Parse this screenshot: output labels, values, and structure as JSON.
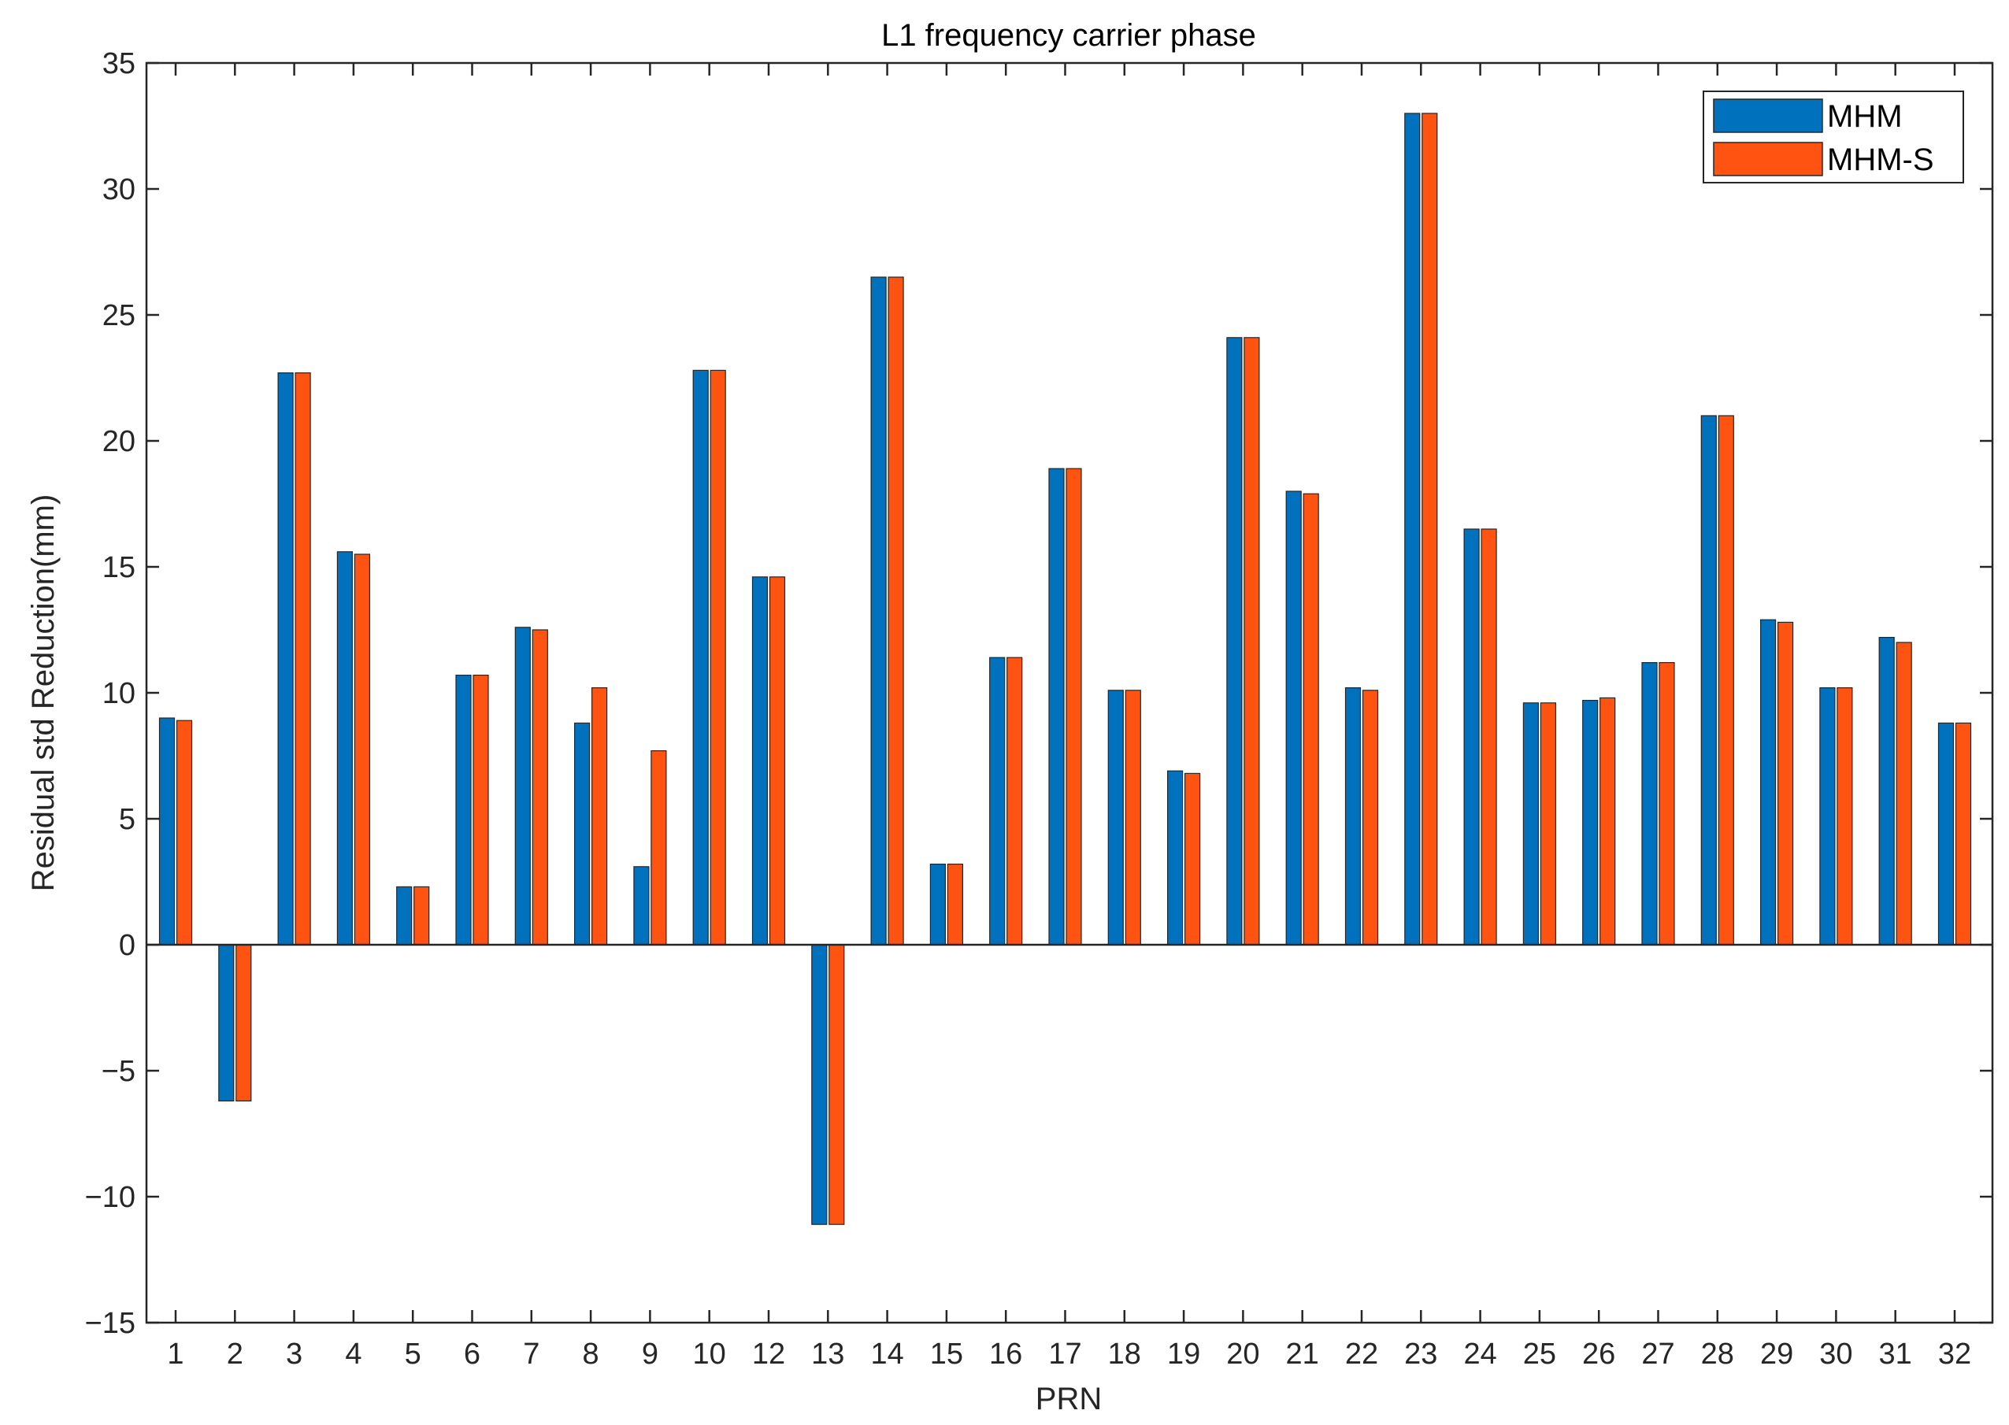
{
  "chart_data": {
    "type": "bar",
    "title": "L1 frequency carrier phase",
    "xlabel": "PRN",
    "ylabel": "Residual std Reduction(mm)",
    "ylim": [
      -15,
      35
    ],
    "yticks": [
      -15,
      -10,
      -5,
      0,
      5,
      10,
      15,
      20,
      25,
      30,
      35
    ],
    "ytick_labels": [
      "−15",
      "−10",
      "−5",
      "0",
      "5",
      "10",
      "15",
      "20",
      "25",
      "30",
      "35"
    ],
    "categories": [
      "1",
      "2",
      "3",
      "4",
      "5",
      "6",
      "7",
      "8",
      "9",
      "10",
      "12",
      "13",
      "14",
      "15",
      "16",
      "17",
      "18",
      "19",
      "20",
      "21",
      "22",
      "23",
      "24",
      "25",
      "26",
      "27",
      "28",
      "29",
      "30",
      "31",
      "32"
    ],
    "series": [
      {
        "name": "MHM",
        "color": "#0072BD",
        "values": [
          9.0,
          -6.2,
          22.7,
          15.6,
          2.3,
          10.7,
          12.6,
          8.8,
          3.1,
          22.8,
          14.6,
          -11.1,
          26.5,
          3.2,
          11.4,
          18.9,
          10.1,
          6.9,
          24.1,
          18.0,
          10.2,
          33.0,
          16.5,
          9.6,
          9.7,
          11.2,
          21.0,
          12.9,
          10.2,
          12.2,
          8.8
        ]
      },
      {
        "name": "MHM-S",
        "color": "#FF5411",
        "values": [
          8.9,
          -6.2,
          22.7,
          15.5,
          2.3,
          10.7,
          12.5,
          10.2,
          7.7,
          22.8,
          14.6,
          -11.1,
          26.5,
          3.2,
          11.4,
          18.9,
          10.1,
          6.8,
          24.1,
          17.9,
          10.1,
          33.0,
          16.5,
          9.6,
          9.8,
          11.2,
          21.0,
          12.8,
          10.2,
          12.0,
          8.8
        ]
      }
    ],
    "legend_position": "top-right",
    "grid": false
  }
}
